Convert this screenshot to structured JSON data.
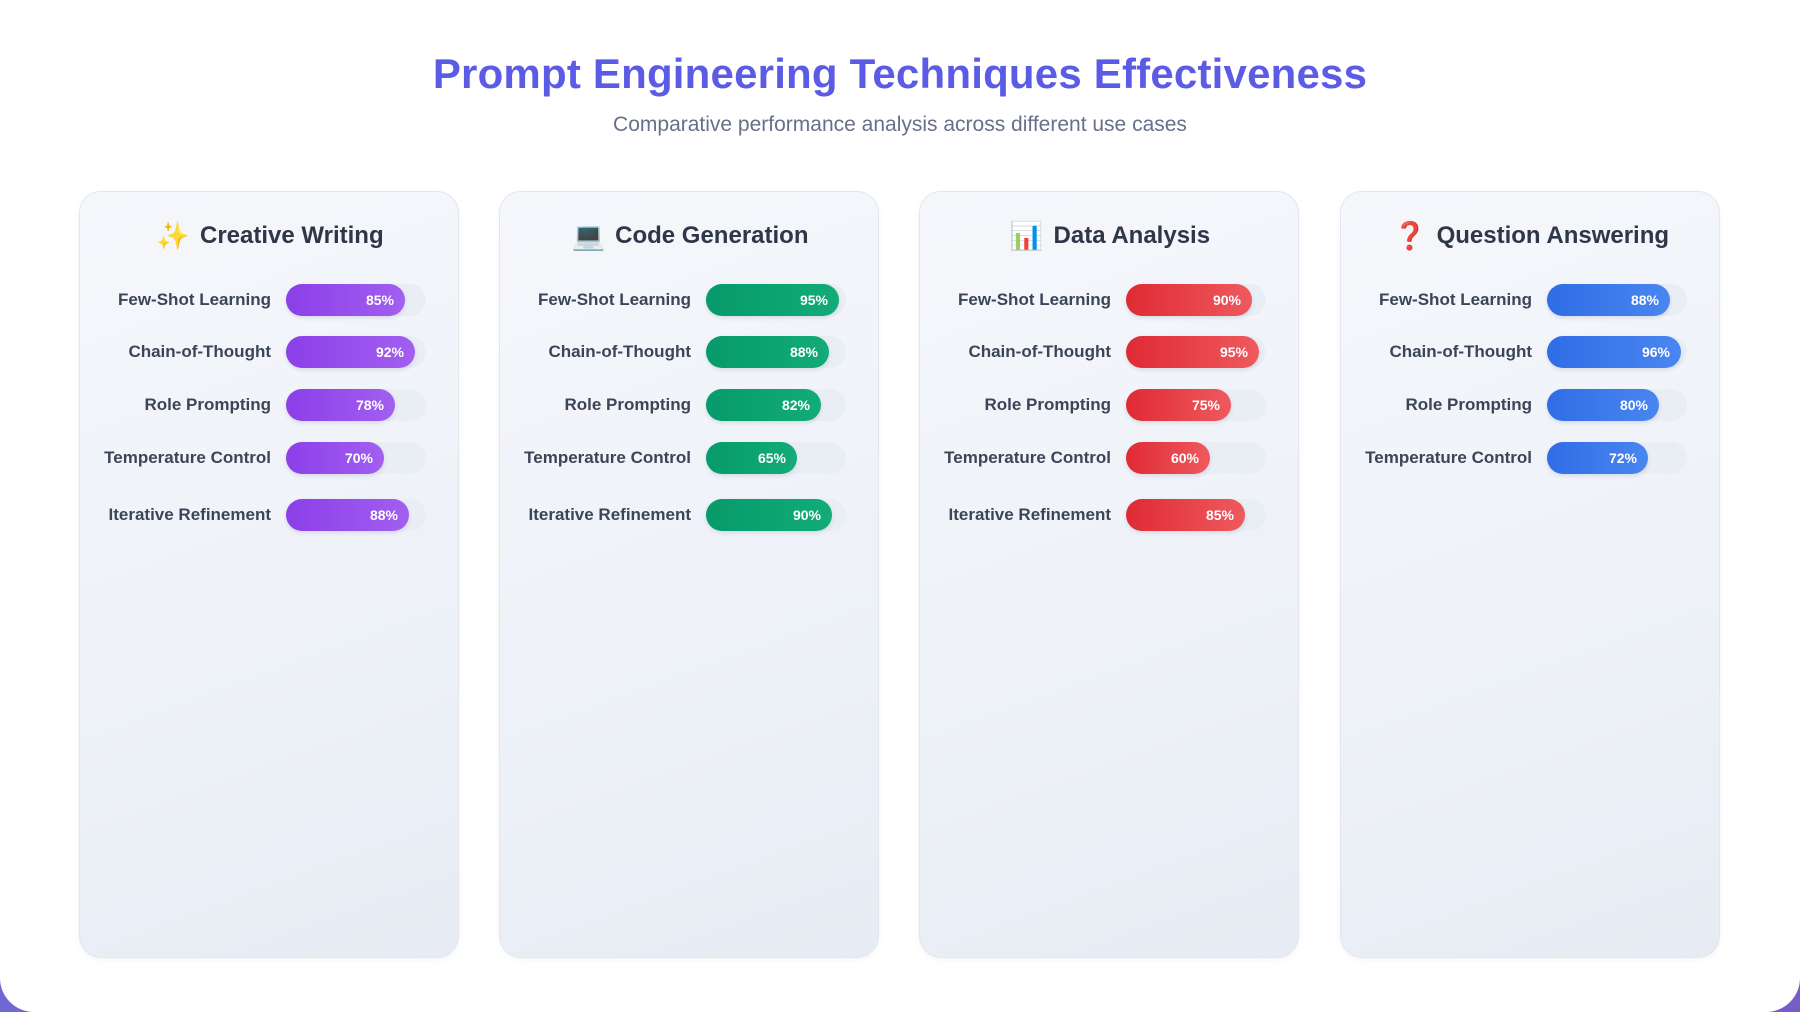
{
  "header": {
    "title": "Prompt Engineering Techniques Effectiveness",
    "subtitle": "Comparative performance analysis across different use cases"
  },
  "chart_data": [
    {
      "type": "bar",
      "title": "Creative Writing",
      "icon": "sparkles-icon",
      "icon_glyph": "✨",
      "color": "#8b3fe8",
      "color_light": "#a25ff0",
      "categories": [
        "Few-Shot Learning",
        "Chain-of-Thought",
        "Role Prompting",
        "Temperature Control",
        "Iterative Refinement"
      ],
      "values": [
        85,
        92,
        78,
        70,
        88
      ],
      "value_labels": [
        "85%",
        "92%",
        "78%",
        "70%",
        "88%"
      ],
      "ylim": [
        0,
        100
      ]
    },
    {
      "type": "bar",
      "title": "Code Generation",
      "icon": "laptop-icon",
      "icon_glyph": "💻",
      "color": "#079a6a",
      "color_light": "#12ac78",
      "categories": [
        "Few-Shot Learning",
        "Chain-of-Thought",
        "Role Prompting",
        "Temperature Control",
        "Iterative Refinement"
      ],
      "values": [
        95,
        88,
        82,
        65,
        90
      ],
      "value_labels": [
        "95%",
        "88%",
        "82%",
        "65%",
        "90%"
      ],
      "ylim": [
        0,
        100
      ]
    },
    {
      "type": "bar",
      "title": "Data Analysis",
      "icon": "bar-chart-icon",
      "icon_glyph": "📊",
      "color": "#e02a34",
      "color_light": "#ee5a5e",
      "categories": [
        "Few-Shot Learning",
        "Chain-of-Thought",
        "Role Prompting",
        "Temperature Control",
        "Iterative Refinement"
      ],
      "values": [
        90,
        95,
        75,
        60,
        85
      ],
      "value_labels": [
        "90%",
        "95%",
        "75%",
        "60%",
        "85%"
      ],
      "ylim": [
        0,
        100
      ]
    },
    {
      "type": "bar",
      "title": "Question Answering",
      "icon": "question-mark-icon",
      "icon_glyph": "❓",
      "color": "#2f6de6",
      "color_light": "#4a86f0",
      "categories": [
        "Few-Shot Learning",
        "Chain-of-Thought",
        "Role Prompting",
        "Temperature Control"
      ],
      "values": [
        88,
        96,
        80,
        72
      ],
      "value_labels": [
        "88%",
        "96%",
        "80%",
        "72%"
      ],
      "ylim": [
        0,
        100
      ]
    }
  ]
}
